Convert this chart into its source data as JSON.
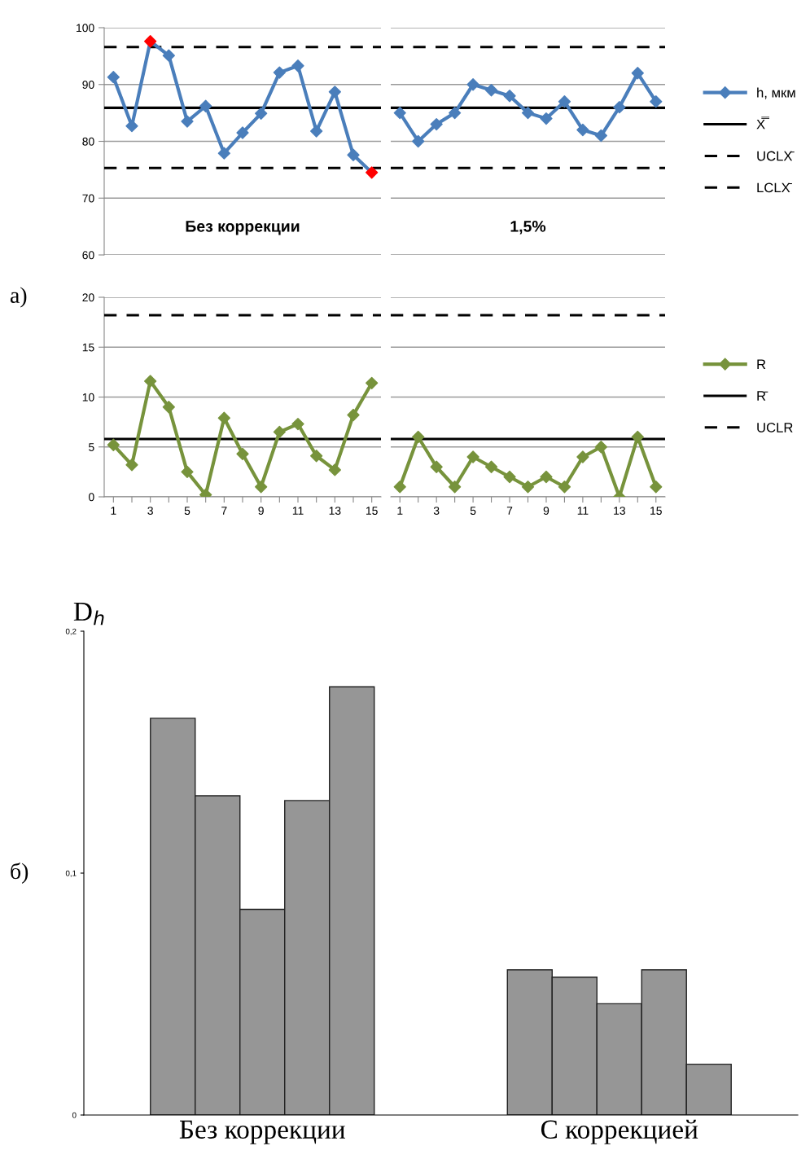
{
  "chart_data": [
    {
      "type": "line",
      "title": "Без коррекции",
      "categories": [
        "1",
        null,
        "3",
        null,
        "5",
        null,
        "7",
        null,
        "9",
        null,
        "11",
        null,
        "13",
        null,
        "15"
      ],
      "tick_labels": "y",
      "ylim": [
        60,
        100
      ],
      "yticks": [
        60,
        70,
        80,
        90,
        100
      ],
      "grid": "y",
      "marker": "diamond",
      "series": [
        {
          "color": "#4a7ebb",
          "colors": [
            "#4a7ebb",
            "#4a7ebb",
            "#ff0000",
            "#4a7ebb",
            "#4a7ebb",
            "#4a7ebb",
            "#4a7ebb",
            "#4a7ebb",
            "#4a7ebb",
            "#4a7ebb",
            "#4a7ebb",
            "#4a7ebb",
            "#4a7ebb",
            "#4a7ebb",
            "#ff0000"
          ],
          "values": [
            91.3,
            82.7,
            97.6,
            95.1,
            83.5,
            86.2,
            77.9,
            81.5,
            84.9,
            92.1,
            93.3,
            81.8,
            88.7,
            77.6,
            74.5
          ]
        }
      ],
      "ref_lines": [
        {
          "axis": "y",
          "value": 85.9,
          "color": "#000000",
          "line_style": "solid"
        },
        {
          "axis": "y",
          "value": 96.6,
          "color": "#000000",
          "line_style": "dashed"
        },
        {
          "axis": "y",
          "value": 75.3,
          "color": "#000000",
          "line_style": "dashed"
        }
      ]
    },
    {
      "type": "line",
      "title": "1,5%",
      "categories": [
        "1",
        null,
        "3",
        null,
        "5",
        null,
        "7",
        null,
        "9",
        null,
        "11",
        null,
        "13",
        null,
        "15"
      ],
      "tick_labels": false,
      "ylim": [
        60,
        100
      ],
      "yticks": [
        60,
        70,
        80,
        90,
        100
      ],
      "grid": "y",
      "marker": "diamond",
      "legend": "right",
      "series": [
        {
          "name": "h, мкм",
          "color": "#4a7ebb",
          "values": [
            85,
            80,
            83,
            85,
            90,
            89,
            88,
            85,
            84,
            87,
            82,
            81,
            86,
            92,
            87
          ]
        }
      ],
      "ref_lines": [
        {
          "axis": "y",
          "value": 85.9,
          "label": "X̿",
          "color": "#000000",
          "line_style": "solid"
        },
        {
          "axis": "y",
          "value": 96.6,
          "label": "UCLX̄",
          "color": "#000000",
          "line_style": "dashed"
        },
        {
          "axis": "y",
          "value": 75.3,
          "label": "LCLX̄",
          "color": "#000000",
          "line_style": "dashed"
        }
      ]
    },
    {
      "type": "line",
      "categories": [
        "1",
        null,
        "3",
        null,
        "5",
        null,
        "7",
        null,
        "9",
        null,
        "11",
        null,
        "13",
        null,
        "15"
      ],
      "ylim": [
        0,
        20
      ],
      "yticks": [
        0,
        5,
        10,
        15,
        20
      ],
      "grid": "y",
      "marker": "diamond",
      "annotations": [
        "а)"
      ],
      "series": [
        {
          "color": "#77933c",
          "values": [
            5.2,
            3.2,
            11.6,
            9.0,
            2.5,
            0.2,
            7.9,
            4.3,
            1.0,
            6.5,
            7.3,
            4.1,
            2.7,
            8.2,
            11.4
          ]
        }
      ],
      "ref_lines": [
        {
          "axis": "y",
          "value": 5.8,
          "color": "#000000",
          "line_style": "solid"
        },
        {
          "axis": "y",
          "value": 18.2,
          "color": "#000000",
          "line_style": "dashed"
        }
      ]
    },
    {
      "type": "line",
      "categories": [
        "1",
        null,
        "3",
        null,
        "5",
        null,
        "7",
        null,
        "9",
        null,
        "11",
        null,
        "13",
        null,
        "15"
      ],
      "tick_labels": "x",
      "ylim": [
        0,
        20
      ],
      "yticks": [
        0,
        5,
        10,
        15,
        20
      ],
      "grid": "y",
      "marker": "diamond",
      "legend": "right",
      "series": [
        {
          "name": "R",
          "color": "#77933c",
          "values": [
            1,
            6,
            3,
            1,
            4,
            3,
            2,
            1,
            2,
            1,
            4,
            5,
            0,
            6,
            1
          ]
        }
      ],
      "ref_lines": [
        {
          "axis": "y",
          "value": 5.8,
          "label": "R̄",
          "color": "#000000",
          "line_style": "solid"
        },
        {
          "axis": "y",
          "value": 18.2,
          "label": "UCLR",
          "color": "#000000",
          "line_style": "dashed"
        }
      ]
    },
    {
      "type": "bar",
      "ylabel": "D$_{h}$",
      "categories": [
        "Без коррекции",
        "С коррекцией"
      ],
      "ylim": [
        0,
        0.2
      ],
      "yticks": [
        {
          "value": 0,
          "label": "0"
        },
        {
          "value": 0.1,
          "label": "0,1"
        },
        {
          "value": 0.2,
          "label": "0,2"
        }
      ],
      "annotations": [
        "б)"
      ],
      "series": [
        {
          "color": "#969696",
          "values": [
            0.164,
            0.06
          ]
        },
        {
          "color": "#969696",
          "values": [
            0.132,
            0.057
          ]
        },
        {
          "color": "#969696",
          "values": [
            0.085,
            0.046
          ]
        },
        {
          "color": "#969696",
          "values": [
            0.13,
            0.06
          ]
        },
        {
          "color": "#969696",
          "values": [
            0.177,
            0.021
          ]
        }
      ]
    }
  ]
}
